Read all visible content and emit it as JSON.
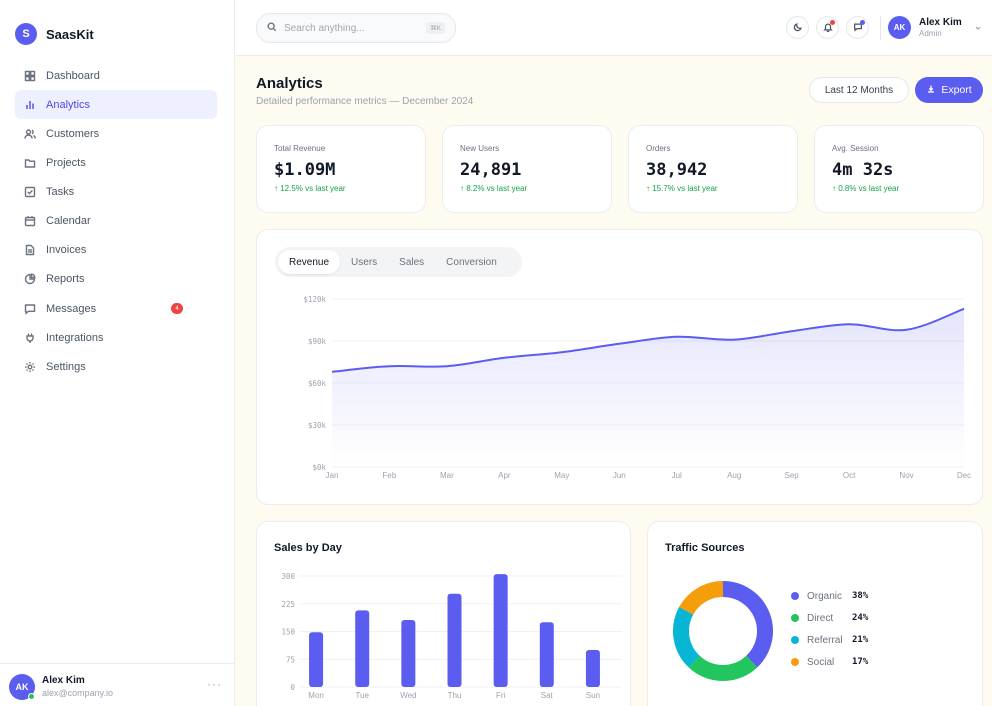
{
  "brand": {
    "logo_letter": "S",
    "name": "SaasKit",
    "accent": "#5b5cf0"
  },
  "sidebar": {
    "items": [
      {
        "label": "Dashboard",
        "icon": "grid-icon"
      },
      {
        "label": "Analytics",
        "icon": "bar-chart-icon",
        "active": true
      },
      {
        "label": "Customers",
        "icon": "users-icon"
      },
      {
        "label": "Projects",
        "icon": "folder-icon"
      },
      {
        "label": "Tasks",
        "icon": "checkbox-icon"
      },
      {
        "label": "Calendar",
        "icon": "calendar-icon"
      },
      {
        "label": "Invoices",
        "icon": "file-icon"
      },
      {
        "label": "Reports",
        "icon": "pie-chart-icon"
      },
      {
        "label": "Messages",
        "icon": "message-icon",
        "badge": "4"
      },
      {
        "label": "Integrations",
        "icon": "plug-icon"
      },
      {
        "label": "Settings",
        "icon": "gear-icon"
      }
    ],
    "user": {
      "initials": "AK",
      "name": "Alex Kim",
      "email": "alex@company.io",
      "more": "···"
    }
  },
  "header": {
    "search_placeholder": "Search anything...",
    "search_shortcut": "⌘K",
    "user": {
      "initials": "AK",
      "name": "Alex Kim",
      "role": "Admin"
    },
    "notification_dot_color": "#ef4444",
    "message_dot_color": "#5b5cf0"
  },
  "page": {
    "title": "Analytics",
    "subtitle": "Detailed performance metrics — December 2024",
    "range_label": "Last 12 Months",
    "export_label": "Export"
  },
  "stats": [
    {
      "label": "Total Revenue",
      "value": "$1.09M",
      "change": "↑ 12.5% vs last year"
    },
    {
      "label": "New Users",
      "value": "24,891",
      "change": "↑ 8.2% vs last year"
    },
    {
      "label": "Orders",
      "value": "38,942",
      "change": "↑ 15.7% vs last year"
    },
    {
      "label": "Avg. Session",
      "value": "4m 32s",
      "change": "↑ 0.8% vs last year"
    }
  ],
  "tabs": [
    "Revenue",
    "Users",
    "Sales",
    "Conversion"
  ],
  "active_tab": 0,
  "chart_data": [
    {
      "type": "area",
      "categories": [
        "Jan",
        "Feb",
        "Mar",
        "Apr",
        "May",
        "Jun",
        "Jul",
        "Aug",
        "Sep",
        "Oct",
        "Nov",
        "Dec"
      ],
      "series": [
        {
          "values": [
            68,
            72,
            72,
            78,
            82,
            88,
            93,
            91,
            97,
            102,
            98,
            113
          ]
        }
      ],
      "ytick_labels": [
        "$0k",
        "$30k",
        "$60k",
        "$90k",
        "$120k"
      ],
      "yticks": [
        0,
        30,
        60,
        90,
        120
      ],
      "ylim": [
        0,
        120
      ],
      "unit": "$k",
      "color": "#5b5cf0",
      "grid": true
    },
    {
      "type": "bar",
      "title": "Sales by Day",
      "categories": [
        "Mon",
        "Tue",
        "Wed",
        "Thu",
        "Fri",
        "Sat",
        "Sun"
      ],
      "values": [
        148,
        207,
        181,
        252,
        305,
        175,
        100
      ],
      "yticks": [
        0,
        75,
        150,
        225,
        300
      ],
      "ylim": [
        0,
        300
      ],
      "color": "#5b5cf0",
      "grid": true
    },
    {
      "type": "pie",
      "title": "Traffic Sources",
      "donut": true,
      "slices": [
        {
          "name": "Organic",
          "value": 38,
          "label": "38%",
          "color": "#5b5cf0"
        },
        {
          "name": "Direct",
          "value": 24,
          "label": "24%",
          "color": "#22c55e"
        },
        {
          "name": "Referral",
          "value": 21,
          "label": "21%",
          "color": "#06b6d4"
        },
        {
          "name": "Social",
          "value": 17,
          "label": "17%",
          "color": "#f59e0b"
        }
      ],
      "legend_position": "right"
    }
  ]
}
